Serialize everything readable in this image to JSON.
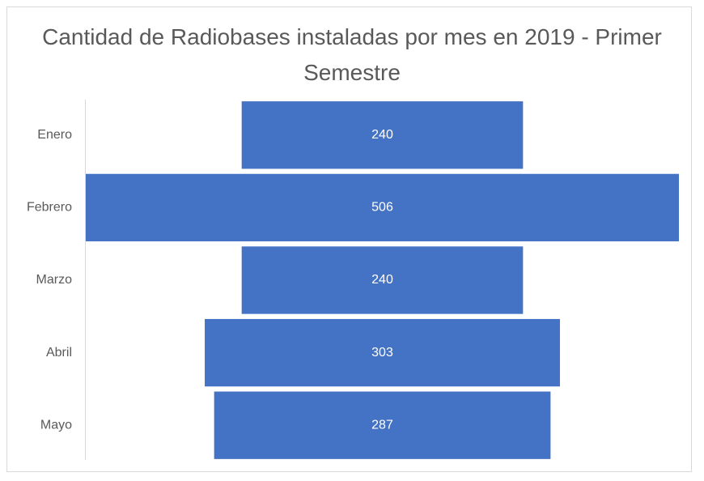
{
  "chart_data": {
    "type": "funnel",
    "title": "Cantidad de Radiobases instaladas por mes en 2019 - Primer Semestre",
    "categories": [
      "Enero",
      "Febrero",
      "Marzo",
      "Abril",
      "Mayo"
    ],
    "values": [
      240,
      506,
      240,
      303,
      287
    ],
    "color": "#4472c4"
  }
}
